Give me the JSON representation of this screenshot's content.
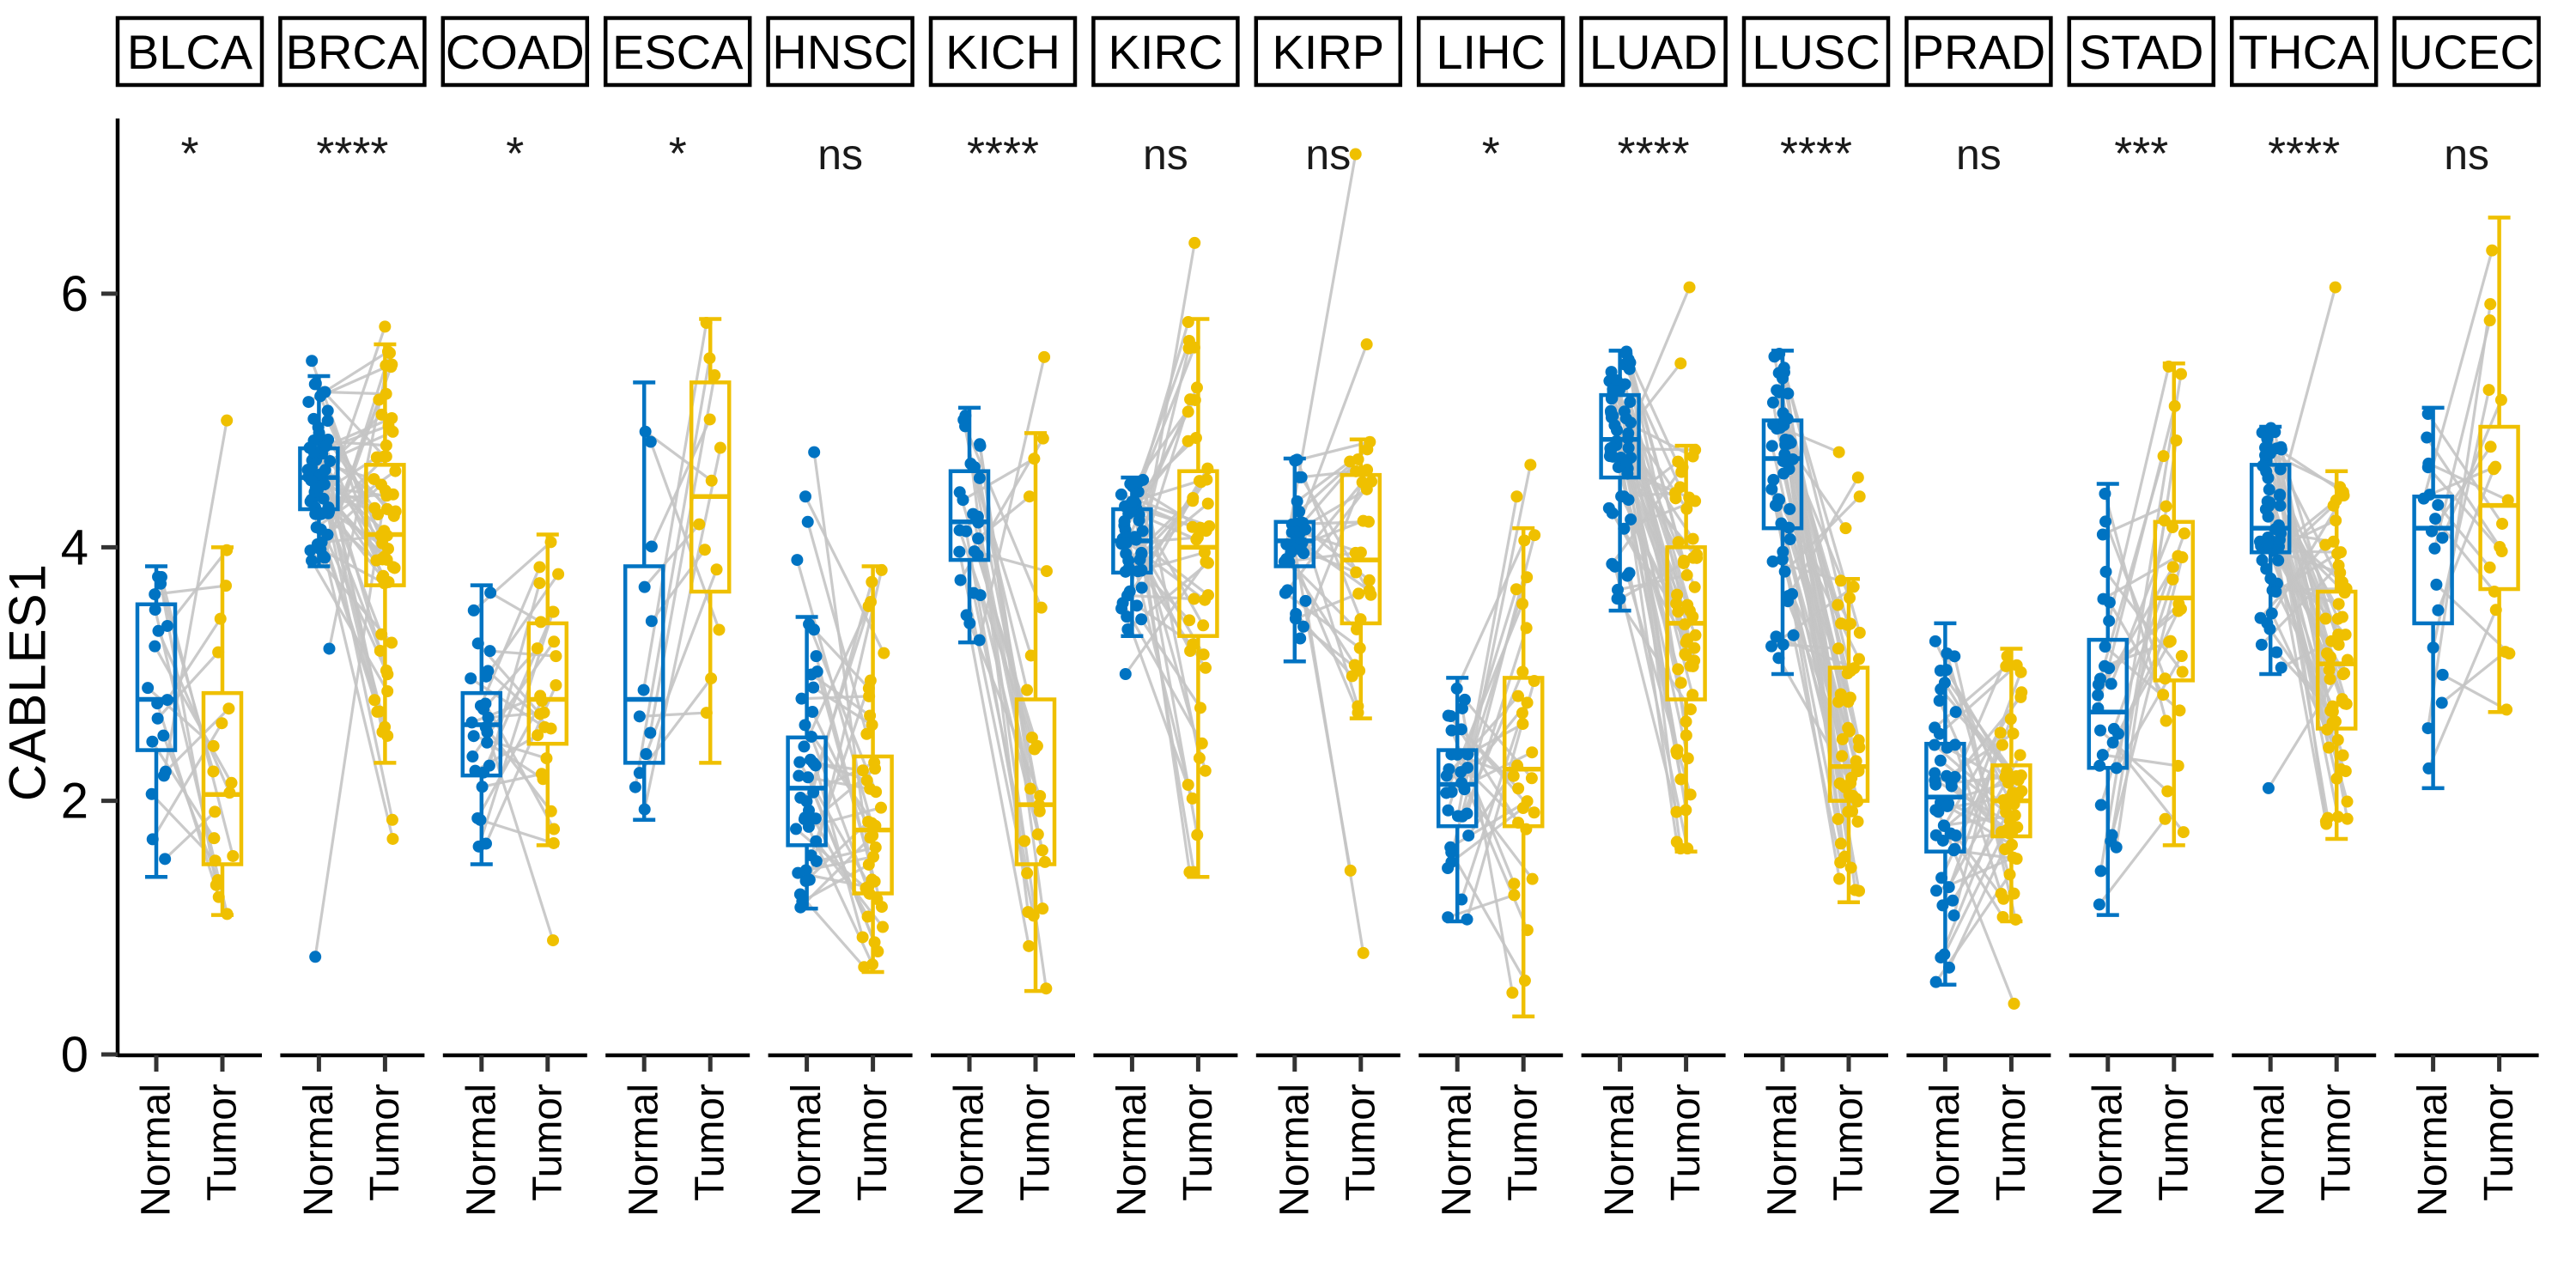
{
  "chart_data": {
    "type": "paired-boxplot-scatter",
    "title": "",
    "ylabel": "CABLES1",
    "xlabel": "",
    "ylim": [
      0,
      7.35
    ],
    "yticks": [
      0,
      2,
      4,
      6
    ],
    "grid": false,
    "group_labels": [
      "Normal",
      "Tumor"
    ],
    "legend_position": "none",
    "colors": {
      "normal": "#0073C2",
      "tumor": "#EFC000",
      "pair_line": "#C4C4C4",
      "axis": "#000000",
      "tick": "#333333",
      "facet_border": "#000000",
      "facet_fill": "#FFFFFF",
      "text": "#000000"
    },
    "panels": [
      {
        "cancer": "BLCA",
        "significance": "*",
        "n_pairs": 19,
        "normal": {
          "whisker_low": 1.4,
          "q1": 2.4,
          "median": 2.8,
          "q3": 3.55,
          "whisker_high": 3.85,
          "outliers": []
        },
        "tumor": {
          "whisker_low": 1.1,
          "q1": 1.5,
          "median": 2.05,
          "q3": 2.85,
          "whisker_high": 4.0,
          "outliers": [
            5.0
          ]
        }
      },
      {
        "cancer": "BRCA",
        "significance": "****",
        "n_pairs": 58,
        "normal": {
          "whisker_low": 3.85,
          "q1": 4.3,
          "median": 4.55,
          "q3": 4.78,
          "whisker_high": 5.35,
          "outliers": [
            5.47,
            3.2,
            0.77
          ]
        },
        "tumor": {
          "whisker_low": 2.3,
          "q1": 3.7,
          "median": 4.1,
          "q3": 4.65,
          "whisker_high": 5.6,
          "outliers": [
            5.74,
            1.85,
            1.7
          ]
        }
      },
      {
        "cancer": "COAD",
        "significance": "*",
        "n_pairs": 25,
        "normal": {
          "whisker_low": 1.5,
          "q1": 2.2,
          "median": 2.6,
          "q3": 2.85,
          "whisker_high": 3.7,
          "outliers": []
        },
        "tumor": {
          "whisker_low": 1.65,
          "q1": 2.45,
          "median": 2.8,
          "q3": 3.4,
          "whisker_high": 4.1,
          "outliers": [
            0.9
          ]
        }
      },
      {
        "cancer": "ESCA",
        "significance": "*",
        "n_pairs": 12,
        "normal": {
          "whisker_low": 1.85,
          "q1": 2.3,
          "median": 2.8,
          "q3": 3.85,
          "whisker_high": 5.3,
          "outliers": []
        },
        "tumor": {
          "whisker_low": 2.3,
          "q1": 3.65,
          "median": 4.4,
          "q3": 5.3,
          "whisker_high": 5.8,
          "outliers": []
        }
      },
      {
        "cancer": "HNSC",
        "significance": "ns",
        "n_pairs": 40,
        "normal": {
          "whisker_low": 1.15,
          "q1": 1.65,
          "median": 2.1,
          "q3": 2.5,
          "whisker_high": 3.45,
          "outliers": [
            4.75,
            4.4,
            4.2,
            3.9
          ]
        },
        "tumor": {
          "whisker_low": 0.65,
          "q1": 1.27,
          "median": 1.77,
          "q3": 2.35,
          "whisker_high": 3.85,
          "outliers": []
        }
      },
      {
        "cancer": "KICH",
        "significance": "****",
        "n_pairs": 25,
        "normal": {
          "whisker_low": 3.25,
          "q1": 3.9,
          "median": 4.2,
          "q3": 4.6,
          "whisker_high": 5.1,
          "outliers": []
        },
        "tumor": {
          "whisker_low": 0.5,
          "q1": 1.5,
          "median": 1.97,
          "q3": 2.8,
          "whisker_high": 4.9,
          "outliers": [
            5.5
          ]
        }
      },
      {
        "cancer": "KIRC",
        "significance": "ns",
        "n_pairs": 45,
        "normal": {
          "whisker_low": 3.3,
          "q1": 3.8,
          "median": 4.05,
          "q3": 4.3,
          "whisker_high": 4.55,
          "outliers": [
            3.0
          ]
        },
        "tumor": {
          "whisker_low": 1.4,
          "q1": 3.3,
          "median": 4.0,
          "q3": 4.6,
          "whisker_high": 5.8,
          "outliers": [
            6.4
          ]
        }
      },
      {
        "cancer": "KIRP",
        "significance": "ns",
        "n_pairs": 30,
        "normal": {
          "whisker_low": 3.1,
          "q1": 3.85,
          "median": 4.05,
          "q3": 4.2,
          "whisker_high": 4.7,
          "outliers": []
        },
        "tumor": {
          "whisker_low": 2.65,
          "q1": 3.4,
          "median": 3.9,
          "q3": 4.57,
          "whisker_high": 4.85,
          "outliers": [
            7.1,
            5.6,
            1.45,
            0.8
          ]
        }
      },
      {
        "cancer": "LIHC",
        "significance": "*",
        "n_pairs": 30,
        "normal": {
          "whisker_low": 1.05,
          "q1": 1.8,
          "median": 2.13,
          "q3": 2.4,
          "whisker_high": 2.97,
          "outliers": []
        },
        "tumor": {
          "whisker_low": 0.3,
          "q1": 1.8,
          "median": 2.25,
          "q3": 2.97,
          "whisker_high": 4.15,
          "outliers": [
            4.65,
            4.4
          ]
        }
      },
      {
        "cancer": "LUAD",
        "significance": "****",
        "n_pairs": 55,
        "normal": {
          "whisker_low": 3.5,
          "q1": 4.55,
          "median": 4.85,
          "q3": 5.2,
          "whisker_high": 5.55,
          "outliers": []
        },
        "tumor": {
          "whisker_low": 1.6,
          "q1": 2.8,
          "median": 3.4,
          "q3": 4.0,
          "whisker_high": 4.8,
          "outliers": [
            6.05,
            5.45
          ]
        }
      },
      {
        "cancer": "LUSC",
        "significance": "****",
        "n_pairs": 50,
        "normal": {
          "whisker_low": 3.0,
          "q1": 4.15,
          "median": 4.7,
          "q3": 5.0,
          "whisker_high": 5.55,
          "outliers": []
        },
        "tumor": {
          "whisker_low": 1.2,
          "q1": 2.0,
          "median": 2.27,
          "q3": 3.05,
          "whisker_high": 3.75,
          "outliers": [
            4.75,
            4.55,
            4.4,
            4.15
          ]
        }
      },
      {
        "cancer": "PRAD",
        "significance": "ns",
        "n_pairs": 45,
        "normal": {
          "whisker_low": 0.55,
          "q1": 1.6,
          "median": 2.03,
          "q3": 2.45,
          "whisker_high": 3.4,
          "outliers": []
        },
        "tumor": {
          "whisker_low": 1.05,
          "q1": 1.72,
          "median": 2.0,
          "q3": 2.28,
          "whisker_high": 3.2,
          "outliers": [
            0.4
          ]
        }
      },
      {
        "cancer": "STAD",
        "significance": "***",
        "n_pairs": 28,
        "normal": {
          "whisker_low": 1.1,
          "q1": 2.26,
          "median": 2.7,
          "q3": 3.27,
          "whisker_high": 4.5,
          "outliers": []
        },
        "tumor": {
          "whisker_low": 1.65,
          "q1": 2.95,
          "median": 3.6,
          "q3": 4.2,
          "whisker_high": 5.45,
          "outliers": []
        }
      },
      {
        "cancer": "THCA",
        "significance": "****",
        "n_pairs": 55,
        "normal": {
          "whisker_low": 3.0,
          "q1": 3.96,
          "median": 4.15,
          "q3": 4.65,
          "whisker_high": 4.95,
          "outliers": [
            2.1
          ]
        },
        "tumor": {
          "whisker_low": 1.7,
          "q1": 2.57,
          "median": 3.08,
          "q3": 3.65,
          "whisker_high": 4.6,
          "outliers": [
            6.05
          ]
        }
      },
      {
        "cancer": "UCEC",
        "significance": "ns",
        "n_pairs": 18,
        "normal": {
          "whisker_low": 2.1,
          "q1": 3.4,
          "median": 4.15,
          "q3": 4.4,
          "whisker_high": 5.1,
          "outliers": []
        },
        "tumor": {
          "whisker_low": 2.7,
          "q1": 3.67,
          "median": 4.33,
          "q3": 4.95,
          "whisker_high": 6.6,
          "outliers": []
        }
      }
    ]
  }
}
